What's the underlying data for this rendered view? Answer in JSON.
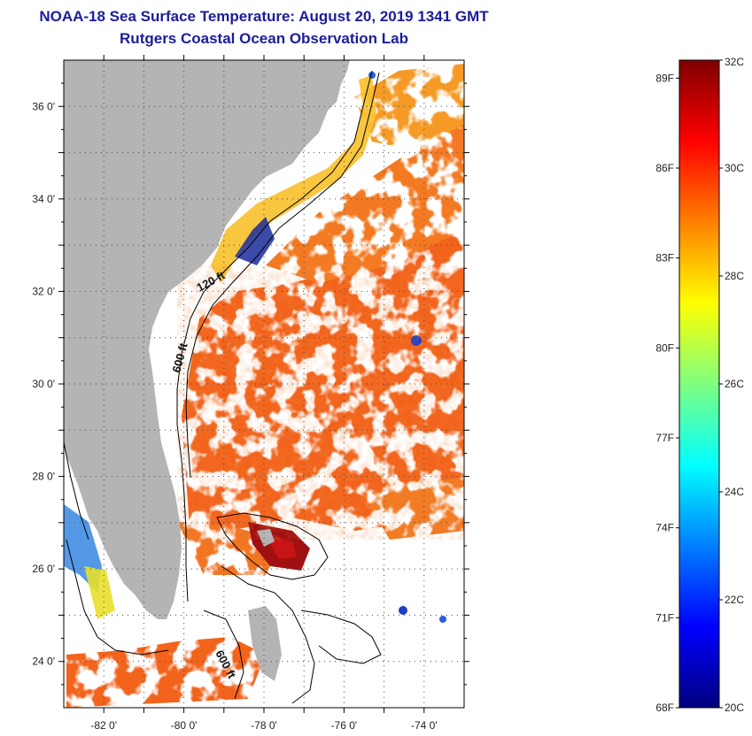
{
  "header": {
    "title": "NOAA-18 Sea Surface Temperature:  August 20, 2019 1341 GMT",
    "subtitle": "Rutgers Coastal Ocean Observation Lab"
  },
  "map": {
    "lon_range": [
      -83,
      -73
    ],
    "lat_range": [
      23,
      37
    ],
    "lon_ticks": [
      {
        "value": -82,
        "label": "-82 0'"
      },
      {
        "value": -80,
        "label": "-80 0'"
      },
      {
        "value": -78,
        "label": "-78 0'"
      },
      {
        "value": -76,
        "label": "-76 0'"
      },
      {
        "value": -74,
        "label": "-74 0'"
      }
    ],
    "lat_ticks": [
      {
        "value": 36,
        "label": "36 0'"
      },
      {
        "value": 34,
        "label": "34 0'"
      },
      {
        "value": 32,
        "label": "32 0'"
      },
      {
        "value": 30,
        "label": "30 0'"
      },
      {
        "value": 28,
        "label": "28 0'"
      },
      {
        "value": 26,
        "label": "26 0'"
      },
      {
        "value": 24,
        "label": "24 0'"
      }
    ],
    "contour_labels": [
      "120 ft",
      "600 ft",
      "600 ft"
    ],
    "colors": {
      "land": "#b4b4b4",
      "cloud": "#ffffff",
      "frame": "#000000"
    }
  },
  "colorbar": {
    "celsius_labels": [
      {
        "value": 32,
        "label": "32C"
      },
      {
        "value": 30,
        "label": "30C"
      },
      {
        "value": 28,
        "label": "28C"
      },
      {
        "value": 26,
        "label": "26C"
      },
      {
        "value": 24,
        "label": "24C"
      },
      {
        "value": 22,
        "label": "22C"
      },
      {
        "value": 20,
        "label": "20C"
      }
    ],
    "fahrenheit_labels": [
      {
        "value": 89,
        "label": "89F"
      },
      {
        "value": 86,
        "label": "86F"
      },
      {
        "value": 83,
        "label": "83F"
      },
      {
        "value": 80,
        "label": "80F"
      },
      {
        "value": 77,
        "label": "77F"
      },
      {
        "value": 74,
        "label": "74F"
      },
      {
        "value": 71,
        "label": "71F"
      },
      {
        "value": 68,
        "label": "68F"
      }
    ],
    "range_c": [
      20,
      32
    ],
    "stops": [
      "#00007f",
      "#0000ff",
      "#007fff",
      "#00ffff",
      "#7fff7f",
      "#ffff00",
      "#ff7f00",
      "#ff0000",
      "#7f0000"
    ]
  }
}
